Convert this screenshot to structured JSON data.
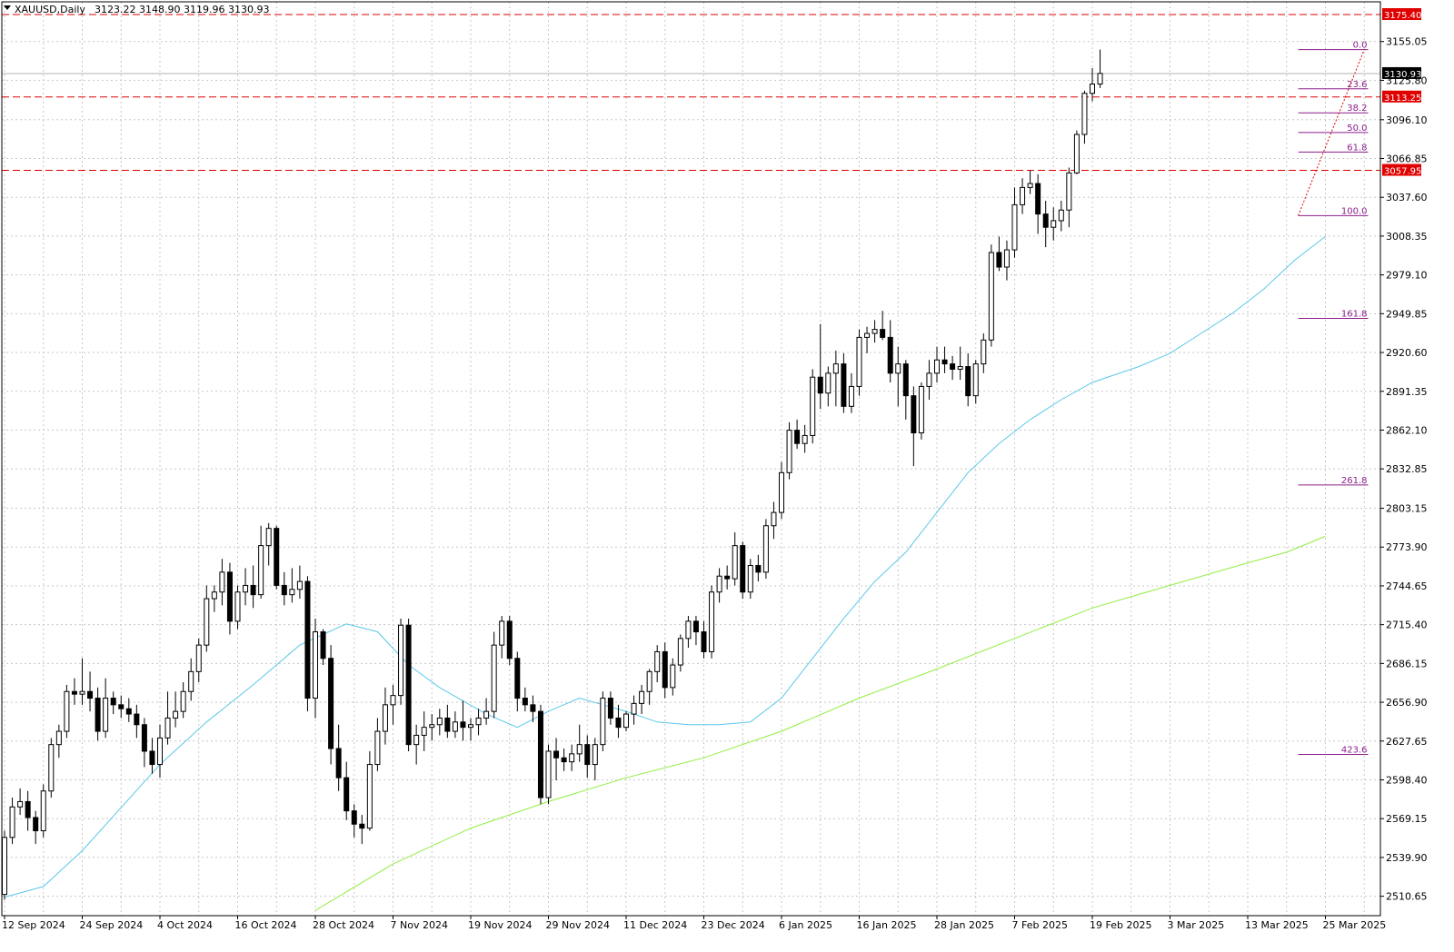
{
  "header": {
    "symbol": "XAUUSD,Daily",
    "ohlc": "3123.22 3148.90 3119.96 3130.93"
  },
  "colors": {
    "grid": "#c8c8c8",
    "ma_fast": "#5bc8e8",
    "ma_slow": "#90ee40",
    "fib": "#8b1e8b",
    "level": "#e00000",
    "price_tag": "#000000"
  },
  "chart_data": {
    "type": "candlestick",
    "title": "",
    "ylim": [
      2496,
      3185
    ],
    "y_ticks": [
      "3155.05",
      "3125.80",
      "3096.10",
      "3066.85",
      "3037.60",
      "3008.35",
      "2979.10",
      "2949.85",
      "2920.60",
      "2891.35",
      "2862.10",
      "2832.85",
      "2803.15",
      "2773.90",
      "2744.65",
      "2715.40",
      "2686.15",
      "2656.90",
      "2627.65",
      "2598.40",
      "2569.15",
      "2539.90",
      "2510.65"
    ],
    "x_ticks": [
      {
        "label": "12 Sep 2024",
        "i": 0
      },
      {
        "label": "24 Sep 2024",
        "i": 10
      },
      {
        "label": "4 Oct 2024",
        "i": 20
      },
      {
        "label": "16 Oct 2024",
        "i": 30
      },
      {
        "label": "28 Oct 2024",
        "i": 40
      },
      {
        "label": "7 Nov 2024",
        "i": 50
      },
      {
        "label": "19 Nov 2024",
        "i": 60
      },
      {
        "label": "29 Nov 2024",
        "i": 70
      },
      {
        "label": "11 Dec 2024",
        "i": 80
      },
      {
        "label": "23 Dec 2024",
        "i": 90
      },
      {
        "label": "6 Jan 2025",
        "i": 100
      },
      {
        "label": "16 Jan 2025",
        "i": 110
      },
      {
        "label": "28 Jan 2025",
        "i": 120
      },
      {
        "label": "7 Feb 2025",
        "i": 130
      },
      {
        "label": "19 Feb 2025",
        "i": 140
      },
      {
        "label": "3 Mar 2025",
        "i": 150
      },
      {
        "label": "13 Mar 2025",
        "i": 160
      },
      {
        "label": "25 Mar 2025",
        "i": 170
      }
    ],
    "candles": [
      [
        2512,
        2560,
        2508,
        2555
      ],
      [
        2555,
        2585,
        2550,
        2578
      ],
      [
        2578,
        2592,
        2572,
        2582
      ],
      [
        2582,
        2590,
        2560,
        2570
      ],
      [
        2570,
        2575,
        2550,
        2560
      ],
      [
        2560,
        2595,
        2555,
        2590
      ],
      [
        2590,
        2630,
        2585,
        2625
      ],
      [
        2625,
        2640,
        2615,
        2635
      ],
      [
        2635,
        2670,
        2630,
        2665
      ],
      [
        2665,
        2675,
        2655,
        2663
      ],
      [
        2663,
        2690,
        2655,
        2665
      ],
      [
        2665,
        2680,
        2650,
        2660
      ],
      [
        2660,
        2668,
        2628,
        2635
      ],
      [
        2635,
        2675,
        2630,
        2660
      ],
      [
        2660,
        2665,
        2648,
        2655
      ],
      [
        2655,
        2662,
        2645,
        2652
      ],
      [
        2652,
        2660,
        2642,
        2648
      ],
      [
        2648,
        2655,
        2630,
        2640
      ],
      [
        2640,
        2645,
        2608,
        2620
      ],
      [
        2620,
        2630,
        2603,
        2610
      ],
      [
        2610,
        2640,
        2600,
        2630
      ],
      [
        2630,
        2665,
        2625,
        2645
      ],
      [
        2645,
        2665,
        2638,
        2650
      ],
      [
        2650,
        2672,
        2645,
        2665
      ],
      [
        2665,
        2690,
        2658,
        2680
      ],
      [
        2680,
        2705,
        2672,
        2700
      ],
      [
        2700,
        2745,
        2695,
        2735
      ],
      [
        2735,
        2745,
        2725,
        2740
      ],
      [
        2740,
        2765,
        2730,
        2755
      ],
      [
        2755,
        2762,
        2708,
        2718
      ],
      [
        2718,
        2745,
        2712,
        2740
      ],
      [
        2740,
        2758,
        2730,
        2745
      ],
      [
        2745,
        2760,
        2728,
        2738
      ],
      [
        2738,
        2790,
        2735,
        2775
      ],
      [
        2775,
        2792,
        2760,
        2788
      ],
      [
        2788,
        2790,
        2742,
        2745
      ],
      [
        2745,
        2755,
        2730,
        2738
      ],
      [
        2738,
        2758,
        2732,
        2742
      ],
      [
        2742,
        2760,
        2735,
        2748
      ],
      [
        2748,
        2752,
        2650,
        2660
      ],
      [
        2660,
        2720,
        2645,
        2710
      ],
      [
        2710,
        2712,
        2685,
        2690
      ],
      [
        2690,
        2700,
        2610,
        2622
      ],
      [
        2622,
        2640,
        2590,
        2600
      ],
      [
        2600,
        2612,
        2568,
        2575
      ],
      [
        2575,
        2580,
        2555,
        2565
      ],
      [
        2565,
        2572,
        2550,
        2562
      ],
      [
        2562,
        2620,
        2560,
        2610
      ],
      [
        2610,
        2645,
        2605,
        2635
      ],
      [
        2635,
        2668,
        2625,
        2655
      ],
      [
        2655,
        2670,
        2640,
        2662
      ],
      [
        2662,
        2720,
        2655,
        2715
      ],
      [
        2715,
        2720,
        2620,
        2625
      ],
      [
        2625,
        2640,
        2610,
        2632
      ],
      [
        2632,
        2650,
        2620,
        2638
      ],
      [
        2638,
        2648,
        2628,
        2640
      ],
      [
        2640,
        2652,
        2632,
        2645
      ],
      [
        2645,
        2655,
        2630,
        2635
      ],
      [
        2635,
        2650,
        2630,
        2642
      ],
      [
        2642,
        2658,
        2628,
        2638
      ],
      [
        2638,
        2645,
        2628,
        2640
      ],
      [
        2640,
        2652,
        2632,
        2645
      ],
      [
        2645,
        2660,
        2640,
        2650
      ],
      [
        2650,
        2710,
        2645,
        2700
      ],
      [
        2700,
        2722,
        2690,
        2718
      ],
      [
        2718,
        2722,
        2685,
        2690
      ],
      [
        2690,
        2695,
        2650,
        2660
      ],
      [
        2660,
        2668,
        2650,
        2655
      ],
      [
        2655,
        2662,
        2642,
        2650
      ],
      [
        2650,
        2655,
        2580,
        2585
      ],
      [
        2585,
        2625,
        2580,
        2620
      ],
      [
        2620,
        2630,
        2598,
        2615
      ],
      [
        2615,
        2622,
        2605,
        2612
      ],
      [
        2612,
        2625,
        2605,
        2618
      ],
      [
        2618,
        2640,
        2612,
        2625
      ],
      [
        2625,
        2632,
        2600,
        2610
      ],
      [
        2610,
        2630,
        2598,
        2625
      ],
      [
        2625,
        2665,
        2620,
        2660
      ],
      [
        2660,
        2665,
        2640,
        2645
      ],
      [
        2645,
        2655,
        2630,
        2638
      ],
      [
        2638,
        2650,
        2635,
        2648
      ],
      [
        2648,
        2662,
        2640,
        2656
      ],
      [
        2656,
        2670,
        2648,
        2665
      ],
      [
        2665,
        2682,
        2655,
        2680
      ],
      [
        2680,
        2700,
        2672,
        2695
      ],
      [
        2695,
        2702,
        2660,
        2668
      ],
      [
        2668,
        2690,
        2662,
        2685
      ],
      [
        2685,
        2708,
        2680,
        2705
      ],
      [
        2705,
        2722,
        2698,
        2718
      ],
      [
        2718,
        2722,
        2700,
        2710
      ],
      [
        2710,
        2718,
        2690,
        2695
      ],
      [
        2695,
        2745,
        2690,
        2740
      ],
      [
        2740,
        2758,
        2732,
        2752
      ],
      [
        2752,
        2760,
        2742,
        2750
      ],
      [
        2750,
        2785,
        2745,
        2775
      ],
      [
        2775,
        2778,
        2735,
        2740
      ],
      [
        2740,
        2765,
        2735,
        2760
      ],
      [
        2760,
        2768,
        2748,
        2755
      ],
      [
        2755,
        2795,
        2750,
        2790
      ],
      [
        2790,
        2808,
        2780,
        2800
      ],
      [
        2800,
        2838,
        2795,
        2830
      ],
      [
        2830,
        2868,
        2825,
        2862
      ],
      [
        2862,
        2870,
        2848,
        2852
      ],
      [
        2852,
        2866,
        2845,
        2858
      ],
      [
        2858,
        2908,
        2852,
        2902
      ],
      [
        2902,
        2942,
        2878,
        2890
      ],
      [
        2890,
        2910,
        2880,
        2905
      ],
      [
        2905,
        2922,
        2880,
        2912
      ],
      [
        2912,
        2920,
        2875,
        2880
      ],
      [
        2880,
        2905,
        2875,
        2895
      ],
      [
        2895,
        2938,
        2888,
        2932
      ],
      [
        2932,
        2940,
        2920,
        2935
      ],
      [
        2935,
        2945,
        2928,
        2938
      ],
      [
        2938,
        2952,
        2930,
        2932
      ],
      [
        2932,
        2945,
        2898,
        2905
      ],
      [
        2905,
        2925,
        2880,
        2912
      ],
      [
        2912,
        2915,
        2870,
        2888
      ],
      [
        2888,
        2895,
        2835,
        2860
      ],
      [
        2860,
        2898,
        2855,
        2895
      ],
      [
        2895,
        2915,
        2885,
        2905
      ],
      [
        2905,
        2925,
        2898,
        2915
      ],
      [
        2915,
        2925,
        2905,
        2912
      ],
      [
        2912,
        2918,
        2900,
        2908
      ],
      [
        2908,
        2925,
        2900,
        2910
      ],
      [
        2910,
        2920,
        2880,
        2888
      ],
      [
        2888,
        2915,
        2882,
        2912
      ],
      [
        2912,
        2935,
        2905,
        2930
      ],
      [
        2930,
        3002,
        2925,
        2996
      ],
      [
        2996,
        3008,
        2982,
        2985
      ],
      [
        2985,
        3005,
        2975,
        2998
      ],
      [
        2998,
        3045,
        2992,
        3032
      ],
      [
        3032,
        3052,
        3025,
        3045
      ],
      [
        3045,
        3058,
        3040,
        3048
      ],
      [
        3048,
        3055,
        3010,
        3025
      ],
      [
        3025,
        3035,
        3000,
        3015
      ],
      [
        3015,
        3030,
        3005,
        3020
      ],
      [
        3020,
        3035,
        3012,
        3028
      ],
      [
        3028,
        3060,
        3015,
        3056
      ],
      [
        3056,
        3088,
        3055,
        3085
      ],
      [
        3085,
        3118,
        3078,
        3116
      ],
      [
        3116,
        3135,
        3110,
        3123
      ],
      [
        3123,
        3149,
        3120,
        3131
      ]
    ],
    "series": [
      {
        "points": [
          [
            0,
            2510
          ],
          [
            5,
            2518
          ],
          [
            10,
            2545
          ],
          [
            20,
            2610
          ],
          [
            26,
            2642
          ],
          [
            32,
            2670
          ],
          [
            38,
            2700
          ],
          [
            44,
            2716
          ],
          [
            48,
            2710
          ],
          [
            52,
            2685
          ],
          [
            56,
            2668
          ],
          [
            62,
            2648
          ],
          [
            66,
            2638
          ],
          [
            70,
            2650
          ],
          [
            74,
            2660
          ],
          [
            80,
            2650
          ],
          [
            84,
            2642
          ],
          [
            88,
            2640
          ],
          [
            92,
            2640
          ],
          [
            96,
            2642
          ],
          [
            100,
            2660
          ],
          [
            104,
            2690
          ],
          [
            108,
            2720
          ],
          [
            112,
            2748
          ],
          [
            116,
            2770
          ],
          [
            120,
            2800
          ],
          [
            124,
            2830
          ],
          [
            128,
            2852
          ],
          [
            132,
            2870
          ],
          [
            136,
            2885
          ],
          [
            140,
            2898
          ],
          [
            146,
            2910
          ],
          [
            150,
            2920
          ],
          [
            154,
            2935
          ],
          [
            158,
            2950
          ],
          [
            162,
            2968
          ],
          [
            166,
            2990
          ],
          [
            170,
            3008
          ]
        ]
      },
      {
        "points": [
          [
            40,
            2500
          ],
          [
            50,
            2535
          ],
          [
            60,
            2562
          ],
          [
            70,
            2582
          ],
          [
            80,
            2600
          ],
          [
            90,
            2615
          ],
          [
            100,
            2635
          ],
          [
            110,
            2660
          ],
          [
            120,
            2682
          ],
          [
            130,
            2705
          ],
          [
            140,
            2728
          ],
          [
            150,
            2745
          ],
          [
            160,
            2762
          ],
          [
            165,
            2770
          ],
          [
            170,
            2782
          ]
        ]
      }
    ],
    "fib_levels": [
      {
        "label": "0.0",
        "value": 3149.0
      },
      {
        "label": "23.6",
        "value": 3119.4
      },
      {
        "label": "38.2",
        "value": 3101.3
      },
      {
        "label": "50.0",
        "value": 3086.5
      },
      {
        "label": "61.8",
        "value": 3071.7
      },
      {
        "label": "100.0",
        "value": 3023.8
      },
      {
        "label": "161.8",
        "value": 2946.3
      },
      {
        "label": "261.8",
        "value": 2820.7
      },
      {
        "label": "423.6",
        "value": 2617.6
      }
    ],
    "h_levels": [
      {
        "label": "3175.40",
        "value": 3175.4
      },
      {
        "label": "3113.25",
        "value": 3113.25
      },
      {
        "label": "3057.95",
        "value": 3057.95
      }
    ],
    "current_price": {
      "label": "3130.93",
      "value": 3130.93
    }
  }
}
